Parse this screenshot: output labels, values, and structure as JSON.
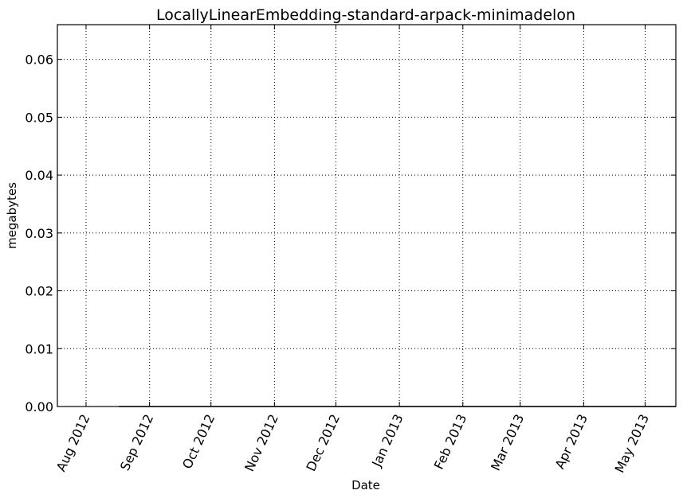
{
  "chart_data": {
    "type": "line",
    "title": "LocallyLinearEmbedding-standard-arpack-minimadelon",
    "xlabel": "Date",
    "ylabel": "megabytes",
    "x_tick_labels": [
      "Aug 2012",
      "Sep 2012",
      "Oct 2012",
      "Nov 2012",
      "Dec 2012",
      "Jan 2013",
      "Feb 2013",
      "Mar 2013",
      "Apr 2013",
      "May 2013"
    ],
    "x_tick_dates": [
      "2012-08-01",
      "2012-09-01",
      "2012-10-01",
      "2012-11-01",
      "2012-12-01",
      "2013-01-01",
      "2013-02-01",
      "2013-03-01",
      "2013-04-01",
      "2013-05-01"
    ],
    "xlim": [
      "2012-07-18",
      "2013-05-16"
    ],
    "y_tick_labels": [
      "0.00",
      "0.01",
      "0.02",
      "0.03",
      "0.04",
      "0.05",
      "0.06"
    ],
    "y_ticks": [
      0,
      0.01,
      0.02,
      0.03,
      0.04,
      0.05,
      0.06
    ],
    "ylim": [
      0,
      0.066
    ],
    "grid": true,
    "series": [
      {
        "color": "#000000",
        "x": [
          "2012-08-17",
          "2013-05-16"
        ],
        "y": [
          0,
          0
        ]
      }
    ]
  }
}
